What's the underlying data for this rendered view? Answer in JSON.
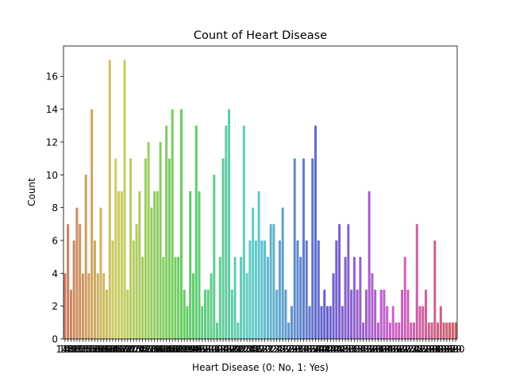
{
  "chart_data": {
    "type": "bar",
    "title": "Count of Heart Disease",
    "xlabel": "Heart Disease (0: No, 1: Yes)",
    "ylabel": "Count",
    "ylim": [
      0,
      17.85
    ],
    "yticks": [
      0,
      2,
      4,
      6,
      8,
      10,
      12,
      14,
      16
    ],
    "grid": false,
    "legend": "none",
    "values": [
      4,
      7,
      3,
      6,
      8,
      7,
      4,
      10,
      4,
      14,
      6,
      4,
      8,
      4,
      3,
      17,
      6,
      11,
      9,
      9,
      17,
      3,
      11,
      6,
      7,
      9,
      5,
      11,
      12,
      8,
      9,
      9,
      12,
      5,
      13,
      11,
      14,
      5,
      5,
      14,
      3,
      2,
      9,
      4,
      13,
      9,
      2,
      3,
      3,
      4,
      10,
      1,
      5,
      11,
      13,
      14,
      3,
      5,
      1,
      5,
      13,
      4,
      6,
      8,
      6,
      9,
      6,
      6,
      5,
      7,
      7,
      3,
      6,
      8,
      3,
      1,
      2,
      11,
      6,
      5,
      11,
      6,
      2,
      11,
      13,
      6,
      2,
      3,
      2,
      2,
      4,
      6,
      7,
      2,
      5,
      7,
      3,
      5,
      3,
      5,
      1,
      3,
      9,
      4,
      3,
      1,
      3,
      3,
      2,
      1,
      2,
      1,
      1,
      3,
      5,
      3,
      1,
      1,
      7,
      2,
      2,
      3,
      1,
      1,
      6,
      1,
      2,
      1,
      1,
      1,
      1,
      1
    ],
    "tick_label_start": 148,
    "tick_label_end": 290
  }
}
